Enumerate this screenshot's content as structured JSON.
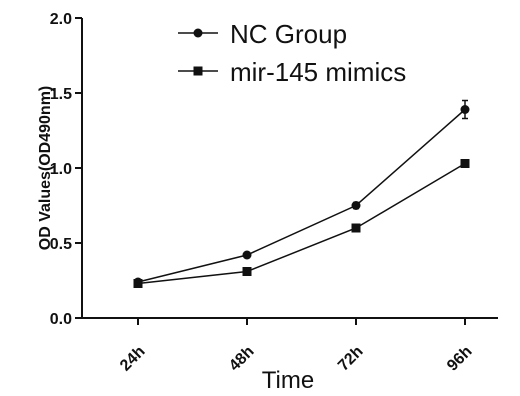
{
  "chart_data": {
    "type": "line",
    "title": "",
    "xlabel": "Time",
    "ylabel": "OD Values(OD490nm)",
    "categories": [
      "24h",
      "48h",
      "72h",
      "96h"
    ],
    "ylim": [
      0.0,
      2.0
    ],
    "yticks": [
      "0.0",
      "0.5",
      "1.0",
      "1.5",
      "2.0"
    ],
    "grid": false,
    "legend_position": "top-center",
    "series": [
      {
        "name": "NC Group",
        "marker": "circle",
        "values": [
          0.24,
          0.42,
          0.75,
          1.39
        ],
        "errors": [
          0.01,
          0.01,
          0.02,
          0.06
        ],
        "color": "#111111"
      },
      {
        "name": "mir-145 mimics",
        "marker": "square",
        "values": [
          0.23,
          0.31,
          0.6,
          1.03
        ],
        "errors": [
          0.01,
          0.01,
          0.02,
          0.02
        ],
        "color": "#111111"
      }
    ]
  }
}
